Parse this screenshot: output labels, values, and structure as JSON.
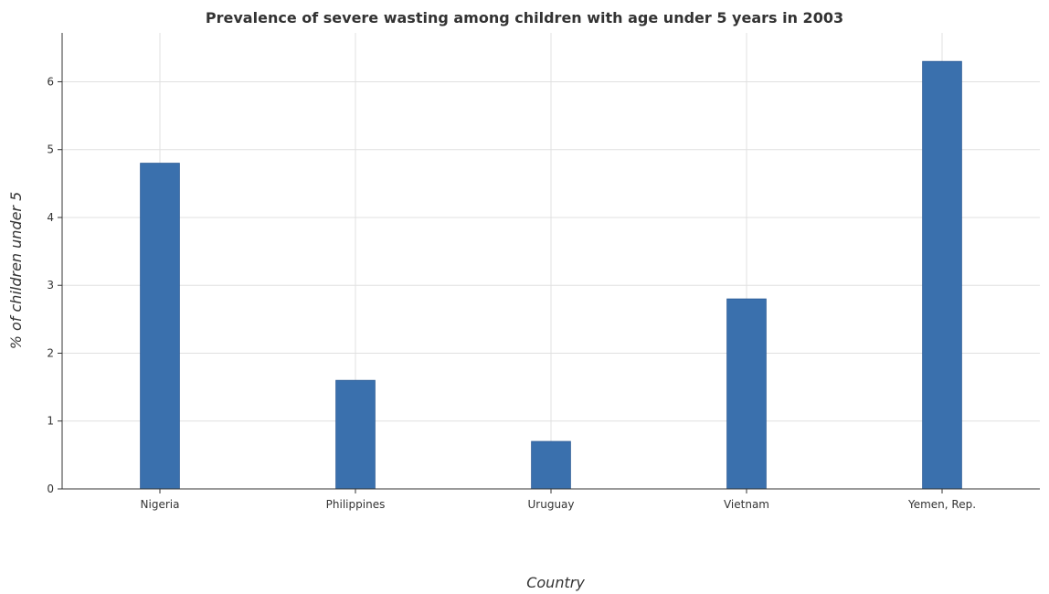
{
  "chart_data": {
    "type": "bar",
    "title": "Prevalence of severe wasting among children with age under 5 years in 2003",
    "xlabel": "Country",
    "ylabel": "% of children under 5",
    "categories": [
      "Nigeria",
      "Philippines",
      "Uruguay",
      "Vietnam",
      "Yemen, Rep."
    ],
    "values": [
      4.8,
      1.6,
      0.7,
      2.8,
      6.3
    ],
    "ylim": [
      0,
      6.72
    ],
    "yticks": [
      0,
      1,
      2,
      3,
      4,
      5,
      6
    ],
    "ytick_labels": [
      "0",
      "1",
      "2",
      "3",
      "4",
      "5",
      "6"
    ],
    "grid": true,
    "colors": {
      "bar": "#3a70ad",
      "bar_edge": "#2a5a95"
    }
  }
}
